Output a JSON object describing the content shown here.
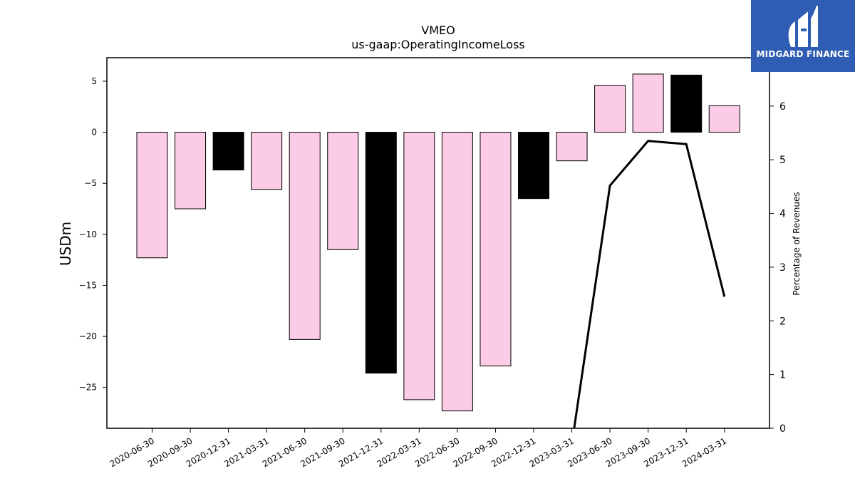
{
  "chart_data": {
    "type": "bar",
    "title": "VMEO",
    "subtitle": "us-gaap:OperatingIncomeLoss",
    "ylabel": "USDm",
    "ylabel_right": "Percentage of Revenues",
    "categories": [
      "2020-06-30",
      "2020-09-30",
      "2020-12-31",
      "2021-03-31",
      "2021-06-30",
      "2021-09-30",
      "2021-12-31",
      "2022-03-31",
      "2022-06-30",
      "2022-09-30",
      "2022-12-31",
      "2023-03-31",
      "2023-06-30",
      "2023-09-30",
      "2023-12-31",
      "2024-03-31"
    ],
    "values": [
      -12.3,
      -7.5,
      -3.7,
      -5.6,
      -20.3,
      -11.5,
      -23.6,
      -26.2,
      -27.3,
      -22.9,
      -6.5,
      -2.8,
      4.6,
      5.7,
      5.6,
      2.6
    ],
    "bar_colors": [
      "#fccbe6",
      "#fccbe6",
      "#000000",
      "#fccbe6",
      "#fccbe6",
      "#fccbe6",
      "#000000",
      "#fccbe6",
      "#fccbe6",
      "#fccbe6",
      "#000000",
      "#fccbe6",
      "#fccbe6",
      "#fccbe6",
      "#000000",
      "#fccbe6"
    ],
    "ylim": [
      -29,
      7.3
    ],
    "yticks": [
      5,
      0,
      -5,
      -10,
      -15,
      -20,
      -25
    ],
    "ytick_labels": [
      "5",
      "0",
      "−5",
      "−10",
      "−15",
      "−20",
      "−25"
    ],
    "line_series": {
      "axis": "right",
      "values": [
        null,
        null,
        null,
        null,
        null,
        null,
        null,
        null,
        null,
        null,
        null,
        -0.3,
        4.52,
        5.35,
        5.29,
        2.45
      ],
      "color": "#000000"
    },
    "ylim_right": [
      0,
      6.9
    ],
    "yticks_right": [
      0,
      1,
      2,
      3,
      4,
      5,
      6
    ],
    "grid": false
  },
  "logo": {
    "text": "MIDGARD FINANCE",
    "background": "#2f5db3"
  }
}
